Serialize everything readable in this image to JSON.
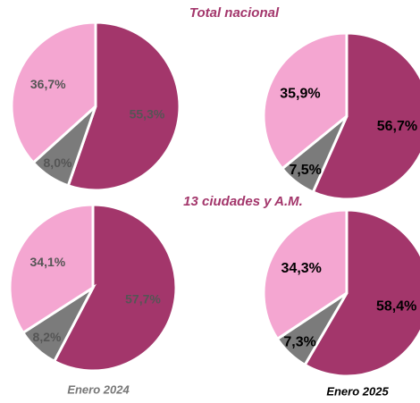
{
  "headings": [
    "Total nacional",
    "13 ciudades y A.M."
  ],
  "columns": [
    "Enero 2024",
    "Enero 2025"
  ],
  "chart_data": [
    {
      "type": "pie",
      "values": [
        55.3,
        8.0,
        36.7
      ],
      "value_labels": [
        "55,3%",
        "8,0%",
        "36,7%"
      ],
      "colors": [
        "#a3366b",
        "#7b7b7b",
        "#f4a6d1"
      ]
    },
    {
      "type": "pie",
      "values": [
        56.7,
        7.5,
        35.9
      ],
      "value_labels": [
        "56,7%",
        "7,5%",
        "35,9%"
      ],
      "colors": [
        "#a3366b",
        "#7b7b7b",
        "#f4a6d1"
      ]
    },
    {
      "type": "pie",
      "values": [
        57.7,
        8.2,
        34.1
      ],
      "value_labels": [
        "57,7%",
        "8,2%",
        "34,1%"
      ],
      "colors": [
        "#a3366b",
        "#7b7b7b",
        "#f4a6d1"
      ]
    },
    {
      "type": "pie",
      "values": [
        58.4,
        7.3,
        34.3
      ],
      "value_labels": [
        "58,4%",
        "7,3%",
        "34,3%"
      ],
      "colors": [
        "#a3366b",
        "#7b7b7b",
        "#f4a6d1"
      ]
    }
  ]
}
